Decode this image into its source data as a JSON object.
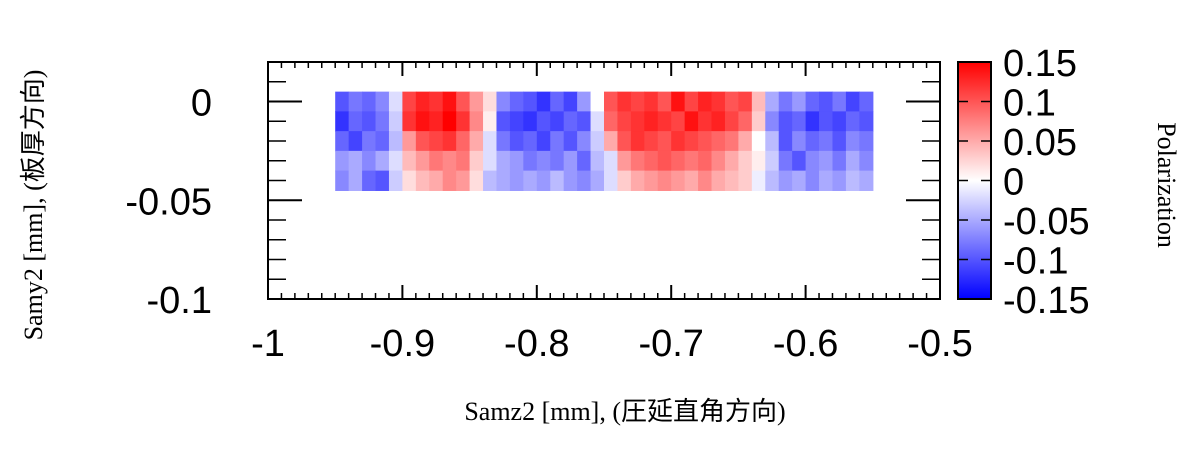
{
  "chart_data": {
    "type": "heatmap",
    "title": "",
    "xlabel": "Samz2 [mm], (圧延直角方向)",
    "ylabel": "Samy2 [mm], (板厚方向)",
    "colorbar_label": "Polarization",
    "xlim": [
      -1,
      -0.5
    ],
    "ylim": [
      -0.1,
      0.02
    ],
    "zlim": [
      -0.15,
      0.15
    ],
    "x_ticks": [
      {
        "value": -1,
        "label": "-1"
      },
      {
        "value": -0.9,
        "label": "-0.9"
      },
      {
        "value": -0.8,
        "label": "-0.8"
      },
      {
        "value": -0.7,
        "label": "-0.7"
      },
      {
        "value": -0.6,
        "label": "-0.6"
      },
      {
        "value": -0.5,
        "label": "-0.5"
      }
    ],
    "y_ticks": [
      {
        "value": 0,
        "label": "0"
      },
      {
        "value": -0.05,
        "label": "-0.05"
      },
      {
        "value": -0.1,
        "label": "-0.1"
      }
    ],
    "colorbar_ticks": [
      {
        "value": 0.15,
        "label": "0.15"
      },
      {
        "value": 0.1,
        "label": "0.1"
      },
      {
        "value": 0.05,
        "label": "0.05"
      },
      {
        "value": 0,
        "label": "0"
      },
      {
        "value": -0.05,
        "label": "-0.05"
      },
      {
        "value": -0.1,
        "label": "-0.1"
      },
      {
        "value": -0.15,
        "label": "-0.15"
      }
    ],
    "colormap": {
      "negative": "#0000ff",
      "zero": "#ffffff",
      "positive": "#ff0000"
    },
    "grid": false,
    "x_cell_width": 0.01,
    "y_cell_height": 0.01,
    "x_values": [
      -0.945,
      -0.935,
      -0.925,
      -0.915,
      -0.905,
      -0.895,
      -0.885,
      -0.875,
      -0.865,
      -0.855,
      -0.845,
      -0.835,
      -0.825,
      -0.815,
      -0.805,
      -0.795,
      -0.785,
      -0.775,
      -0.765,
      -0.755,
      -0.745,
      -0.735,
      -0.725,
      -0.715,
      -0.705,
      -0.695,
      -0.685,
      -0.675,
      -0.665,
      -0.655,
      -0.645,
      -0.635,
      -0.625,
      -0.615,
      -0.605,
      -0.595,
      -0.585,
      -0.575,
      -0.565,
      -0.555
    ],
    "y_values": [
      0.0,
      -0.01,
      -0.02,
      -0.03,
      -0.04
    ],
    "z": [
      [
        -0.1,
        -0.08,
        -0.09,
        -0.07,
        -0.02,
        0.11,
        0.13,
        0.12,
        0.14,
        0.1,
        0.06,
        0.02,
        -0.07,
        -0.09,
        -0.1,
        -0.12,
        -0.09,
        -0.11,
        -0.06,
        0.0,
        0.1,
        0.12,
        0.11,
        0.12,
        0.1,
        0.14,
        0.11,
        0.13,
        0.12,
        0.1,
        0.11,
        0.04,
        -0.05,
        -0.08,
        -0.06,
        -0.09,
        -0.1,
        -0.08,
        -0.11,
        -0.09
      ],
      [
        -0.12,
        -0.09,
        -0.1,
        -0.08,
        -0.03,
        0.12,
        0.14,
        0.13,
        0.15,
        0.12,
        0.07,
        0.01,
        -0.1,
        -0.11,
        -0.12,
        -0.1,
        -0.11,
        -0.09,
        -0.1,
        -0.02,
        0.09,
        0.11,
        0.12,
        0.13,
        0.12,
        0.11,
        0.14,
        0.12,
        0.13,
        0.11,
        0.09,
        0.03,
        -0.07,
        -0.1,
        -0.09,
        -0.12,
        -0.1,
        -0.11,
        -0.09,
        -0.1
      ],
      [
        -0.09,
        -0.11,
        -0.08,
        -0.09,
        -0.04,
        0.06,
        0.1,
        0.11,
        0.12,
        0.09,
        0.05,
        -0.02,
        -0.08,
        -0.1,
        -0.09,
        -0.11,
        -0.08,
        -0.1,
        -0.07,
        -0.03,
        0.05,
        0.1,
        0.12,
        0.11,
        0.1,
        0.12,
        0.11,
        0.1,
        0.09,
        0.08,
        0.05,
        0.0,
        -0.04,
        -0.1,
        -0.07,
        -0.09,
        -0.08,
        -0.1,
        -0.07,
        -0.08
      ],
      [
        -0.06,
        -0.05,
        -0.07,
        -0.05,
        -0.02,
        0.04,
        0.06,
        0.08,
        0.07,
        0.08,
        0.03,
        -0.02,
        -0.05,
        -0.06,
        -0.08,
        -0.07,
        -0.08,
        -0.06,
        -0.09,
        -0.04,
        -0.02,
        0.06,
        0.08,
        0.09,
        0.1,
        0.09,
        0.08,
        0.09,
        0.07,
        0.05,
        0.03,
        0.01,
        -0.03,
        -0.08,
        -0.1,
        -0.07,
        -0.06,
        -0.08,
        -0.05,
        -0.07
      ],
      [
        -0.07,
        -0.05,
        -0.09,
        -0.1,
        -0.03,
        0.02,
        0.04,
        0.05,
        0.07,
        0.06,
        0.02,
        -0.04,
        -0.05,
        -0.06,
        -0.05,
        -0.06,
        -0.04,
        -0.06,
        -0.07,
        -0.05,
        -0.02,
        0.03,
        0.05,
        0.06,
        0.07,
        0.06,
        0.05,
        0.07,
        0.05,
        0.04,
        0.03,
        -0.01,
        -0.04,
        -0.06,
        -0.05,
        -0.07,
        -0.05,
        -0.06,
        -0.04,
        -0.05
      ]
    ]
  }
}
